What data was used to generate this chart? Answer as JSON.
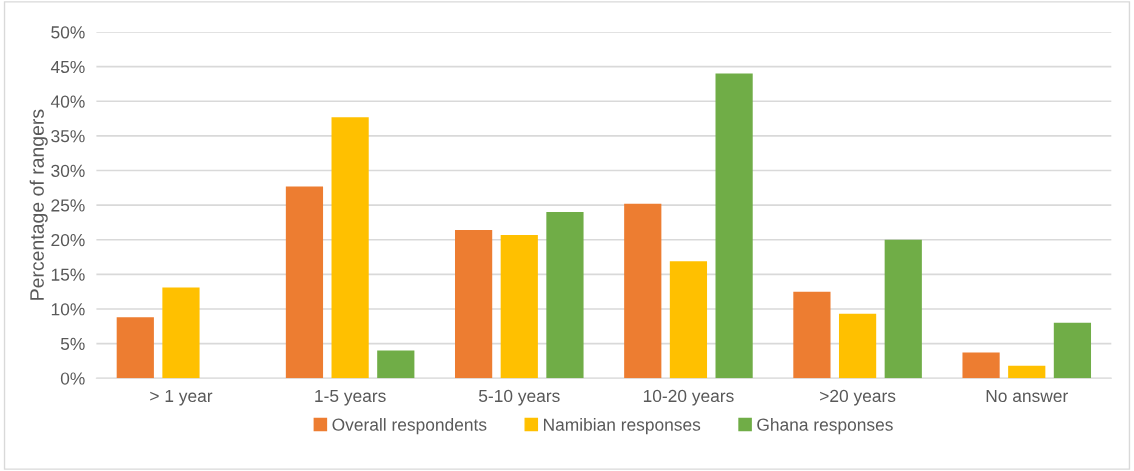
{
  "chart_data": {
    "type": "bar",
    "ylabel": "Percentage of rangers",
    "categories": [
      "> 1 year",
      "1-5 years",
      "5-10 years",
      "10-20 years",
      ">20 years",
      "No answer"
    ],
    "series": [
      {
        "name": "Overall respondents",
        "color": "#ed7d31",
        "values": [
          8.8,
          27.7,
          21.4,
          25.2,
          12.5,
          3.7
        ]
      },
      {
        "name": "Namibian responses",
        "color": "#ffc000",
        "values": [
          13.1,
          37.7,
          20.7,
          16.9,
          9.3,
          1.8
        ]
      },
      {
        "name": "Ghana responses",
        "color": "#70ad47",
        "values": [
          null,
          4,
          24,
          44,
          20,
          8
        ]
      }
    ],
    "ylim": [
      0,
      50
    ],
    "yticks": [
      {
        "value": 0,
        "label": "0%"
      },
      {
        "value": 5,
        "label": "5%"
      },
      {
        "value": 10,
        "label": "10%"
      },
      {
        "value": 15,
        "label": "15%"
      },
      {
        "value": 20,
        "label": "20%"
      },
      {
        "value": 25,
        "label": "25%"
      },
      {
        "value": 30,
        "label": "30%"
      },
      {
        "value": 35,
        "label": "35%"
      },
      {
        "value": 40,
        "label": "40%"
      },
      {
        "value": 45,
        "label": "45%"
      },
      {
        "value": 50,
        "label": "50%"
      }
    ],
    "grid": "y",
    "legend": "bottom"
  }
}
